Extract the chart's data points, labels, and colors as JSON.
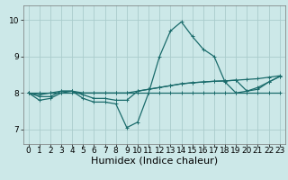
{
  "title": "",
  "xlabel": "Humidex (Indice chaleur)",
  "ylabel": "",
  "background_color": "#cce8e8",
  "grid_color": "#aacccc",
  "line_color": "#1a6b6b",
  "xlim": [
    -0.5,
    23.5
  ],
  "ylim": [
    6.6,
    10.4
  ],
  "yticks": [
    7,
    8,
    9,
    10
  ],
  "xticks": [
    0,
    1,
    2,
    3,
    4,
    5,
    6,
    7,
    8,
    9,
    10,
    11,
    12,
    13,
    14,
    15,
    16,
    17,
    18,
    19,
    20,
    21,
    22,
    23
  ],
  "lines": [
    {
      "x": [
        0,
        1,
        2,
        3,
        4,
        5,
        6,
        7,
        8,
        9,
        10,
        11,
        12,
        13,
        14,
        15,
        16,
        17,
        18,
        19,
        20,
        21,
        22,
        23
      ],
      "y": [
        8.0,
        7.8,
        7.85,
        8.0,
        8.05,
        7.85,
        7.75,
        7.75,
        7.7,
        7.05,
        7.2,
        8.0,
        9.0,
        9.7,
        9.95,
        9.55,
        9.2,
        9.0,
        8.3,
        8.0,
        8.05,
        8.1,
        8.3,
        8.45
      ]
    },
    {
      "x": [
        0,
        1,
        2,
        3,
        4,
        5,
        6,
        7,
        8,
        9,
        10,
        11,
        12,
        13,
        14,
        15,
        16,
        17,
        18,
        19,
        20,
        21,
        22,
        23
      ],
      "y": [
        8.0,
        7.95,
        8.0,
        8.05,
        8.05,
        8.0,
        8.0,
        8.0,
        8.0,
        8.0,
        8.05,
        8.1,
        8.15,
        8.2,
        8.25,
        8.28,
        8.3,
        8.32,
        8.33,
        8.35,
        8.37,
        8.39,
        8.43,
        8.47
      ]
    },
    {
      "x": [
        0,
        1,
        2,
        3,
        4,
        5,
        6,
        7,
        8,
        9,
        10,
        11,
        12,
        13,
        14,
        15,
        16,
        17,
        18,
        19,
        20,
        21,
        22,
        23
      ],
      "y": [
        8.0,
        8.0,
        8.0,
        8.0,
        8.0,
        8.0,
        8.0,
        8.0,
        8.0,
        8.0,
        8.0,
        8.0,
        8.0,
        8.0,
        8.0,
        8.0,
        8.0,
        8.0,
        8.0,
        8.0,
        8.0,
        8.0,
        8.0,
        8.0
      ]
    },
    {
      "x": [
        0,
        1,
        2,
        3,
        4,
        5,
        6,
        7,
        8,
        9,
        10,
        11,
        12,
        13,
        14,
        15,
        16,
        17,
        18,
        19,
        20,
        21,
        22,
        23
      ],
      "y": [
        8.0,
        7.9,
        7.9,
        8.05,
        8.05,
        7.95,
        7.85,
        7.85,
        7.8,
        7.8,
        8.05,
        8.1,
        8.15,
        8.2,
        8.25,
        8.28,
        8.3,
        8.32,
        8.33,
        8.35,
        8.05,
        8.15,
        8.3,
        8.45
      ]
    }
  ],
  "marker": "+",
  "markersize": 3,
  "linewidth": 0.9,
  "fontsize_xlabel": 8,
  "fontsize_ticks": 6.5
}
